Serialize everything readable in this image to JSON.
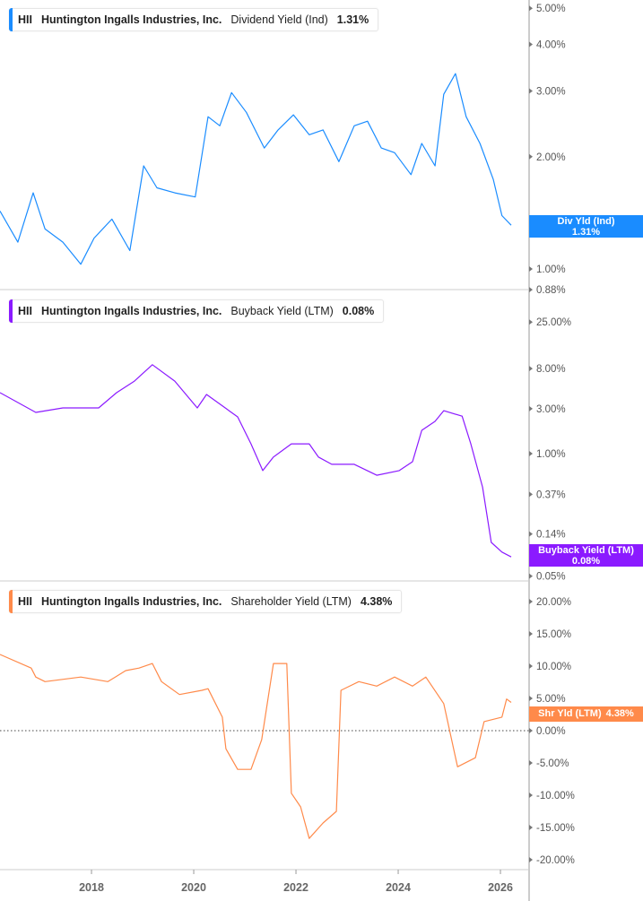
{
  "chart_data": [
    {
      "type": "line",
      "ticker": "HII",
      "company": "Huntington Ingalls Industries, Inc.",
      "metric": "Dividend Yield (Ind)",
      "last_value": "1.31%",
      "tag_label": "Div Yld (Ind)",
      "color": "#1a8cff",
      "yscale": "log",
      "ylim": [
        0.88,
        5.3
      ],
      "yticks": [
        "5.00%",
        "4.00%",
        "3.00%",
        "2.00%",
        "1.00%",
        "0.88%"
      ],
      "ytick_values": [
        5,
        4,
        3,
        2,
        1,
        0.88
      ],
      "points": [
        [
          2016.21,
          1.43
        ],
        [
          2016.56,
          1.18
        ],
        [
          2016.86,
          1.6
        ],
        [
          2017.09,
          1.28
        ],
        [
          2017.44,
          1.18
        ],
        [
          2017.79,
          1.03
        ],
        [
          2018.05,
          1.21
        ],
        [
          2018.4,
          1.36
        ],
        [
          2018.75,
          1.12
        ],
        [
          2019.02,
          1.89
        ],
        [
          2019.28,
          1.65
        ],
        [
          2019.63,
          1.6
        ],
        [
          2020.03,
          1.56
        ],
        [
          2020.28,
          2.56
        ],
        [
          2020.51,
          2.42
        ],
        [
          2020.74,
          2.97
        ],
        [
          2021.03,
          2.63
        ],
        [
          2021.38,
          2.11
        ],
        [
          2021.65,
          2.36
        ],
        [
          2021.95,
          2.59
        ],
        [
          2022.26,
          2.29
        ],
        [
          2022.53,
          2.36
        ],
        [
          2022.84,
          1.94
        ],
        [
          2023.14,
          2.42
        ],
        [
          2023.4,
          2.49
        ],
        [
          2023.67,
          2.11
        ],
        [
          2023.93,
          2.05
        ],
        [
          2024.25,
          1.79
        ],
        [
          2024.46,
          2.17
        ],
        [
          2024.72,
          1.89
        ],
        [
          2024.89,
          2.94
        ],
        [
          2025.12,
          3.34
        ],
        [
          2025.33,
          2.56
        ],
        [
          2025.6,
          2.17
        ],
        [
          2025.86,
          1.74
        ],
        [
          2026.03,
          1.39
        ],
        [
          2026.21,
          1.31
        ]
      ]
    },
    {
      "type": "line",
      "ticker": "HII",
      "company": "Huntington Ingalls Industries, Inc.",
      "metric": "Buyback Yield (LTM)",
      "last_value": "0.08%",
      "tag_label": "Buyback Yield (LTM)",
      "color": "#8b1aff",
      "yscale": "log",
      "ylim": [
        0.045,
        30
      ],
      "yticks": [
        "25.00%",
        "8.00%",
        "3.00%",
        "1.00%",
        "0.37%",
        "0.14%",
        "0.05%"
      ],
      "ytick_values": [
        25,
        8,
        3,
        1,
        0.37,
        0.14,
        0.05
      ],
      "points": [
        [
          2016.21,
          4.44
        ],
        [
          2016.91,
          2.74
        ],
        [
          2017.44,
          3.06
        ],
        [
          2018.14,
          3.06
        ],
        [
          2018.49,
          4.44
        ],
        [
          2018.84,
          5.9
        ],
        [
          2019.19,
          8.8
        ],
        [
          2019.63,
          5.9
        ],
        [
          2020.07,
          3.06
        ],
        [
          2020.25,
          4.25
        ],
        [
          2020.86,
          2.46
        ],
        [
          2021.12,
          1.27
        ],
        [
          2021.35,
          0.66
        ],
        [
          2021.56,
          0.92
        ],
        [
          2021.91,
          1.27
        ],
        [
          2022.26,
          1.27
        ],
        [
          2022.44,
          0.92
        ],
        [
          2022.7,
          0.77
        ],
        [
          2023.14,
          0.77
        ],
        [
          2023.58,
          0.59
        ],
        [
          2024.02,
          0.66
        ],
        [
          2024.28,
          0.82
        ],
        [
          2024.46,
          1.77
        ],
        [
          2024.72,
          2.2
        ],
        [
          2024.89,
          2.86
        ],
        [
          2025.25,
          2.5
        ],
        [
          2025.42,
          1.27
        ],
        [
          2025.65,
          0.44
        ],
        [
          2025.82,
          0.114
        ],
        [
          2026.03,
          0.09
        ],
        [
          2026.21,
          0.08
        ]
      ]
    },
    {
      "type": "line",
      "ticker": "HII",
      "company": "Huntington Ingalls Industries, Inc.",
      "metric": "Shareholder Yield (LTM)",
      "last_value": "4.38%",
      "tag_label": "Shr Yld (LTM)",
      "color": "#ff8a4a",
      "yscale": "linear",
      "ylim": [
        -21.5,
        21.5
      ],
      "yticks": [
        "20.00%",
        "15.00%",
        "10.00%",
        "5.00%",
        "0.00%",
        "-5.00%",
        "-10.00%",
        "-15.00%",
        "-20.00%"
      ],
      "ytick_values": [
        20,
        15,
        10,
        5,
        0,
        -5,
        -10,
        -15,
        -20
      ],
      "zero_line": true,
      "points": [
        [
          2016.21,
          11.8
        ],
        [
          2016.82,
          9.7
        ],
        [
          2016.91,
          8.3
        ],
        [
          2017.09,
          7.6
        ],
        [
          2017.79,
          8.3
        ],
        [
          2018.32,
          7.6
        ],
        [
          2018.67,
          9.3
        ],
        [
          2018.93,
          9.7
        ],
        [
          2019.19,
          10.4
        ],
        [
          2019.37,
          7.6
        ],
        [
          2019.72,
          5.6
        ],
        [
          2020.16,
          6.25
        ],
        [
          2020.28,
          6.5
        ],
        [
          2020.56,
          2.1
        ],
        [
          2020.63,
          -2.8
        ],
        [
          2020.86,
          -6
        ],
        [
          2021.12,
          -6
        ],
        [
          2021.33,
          -1.4
        ],
        [
          2021.56,
          10.4
        ],
        [
          2021.82,
          10.4
        ],
        [
          2021.91,
          -9.7
        ],
        [
          2022.09,
          -11.8
        ],
        [
          2022.26,
          -16.7
        ],
        [
          2022.53,
          -14.3
        ],
        [
          2022.79,
          -12.5
        ],
        [
          2022.88,
          6.25
        ],
        [
          2023.23,
          7.6
        ],
        [
          2023.58,
          6.9
        ],
        [
          2023.93,
          8.3
        ],
        [
          2024.28,
          6.9
        ],
        [
          2024.54,
          8.3
        ],
        [
          2024.89,
          4.2
        ],
        [
          2025.16,
          -5.6
        ],
        [
          2025.51,
          -4.2
        ],
        [
          2025.68,
          1.4
        ],
        [
          2026.03,
          2.1
        ],
        [
          2026.12,
          4.9
        ],
        [
          2026.21,
          4.38
        ]
      ]
    }
  ],
  "x_axis": {
    "ticks": [
      "2018",
      "2020",
      "2022",
      "2024",
      "2026"
    ],
    "tick_values": [
      2018,
      2020,
      2022,
      2024,
      2026
    ],
    "xlim": [
      2016.21,
      2026.6
    ]
  }
}
